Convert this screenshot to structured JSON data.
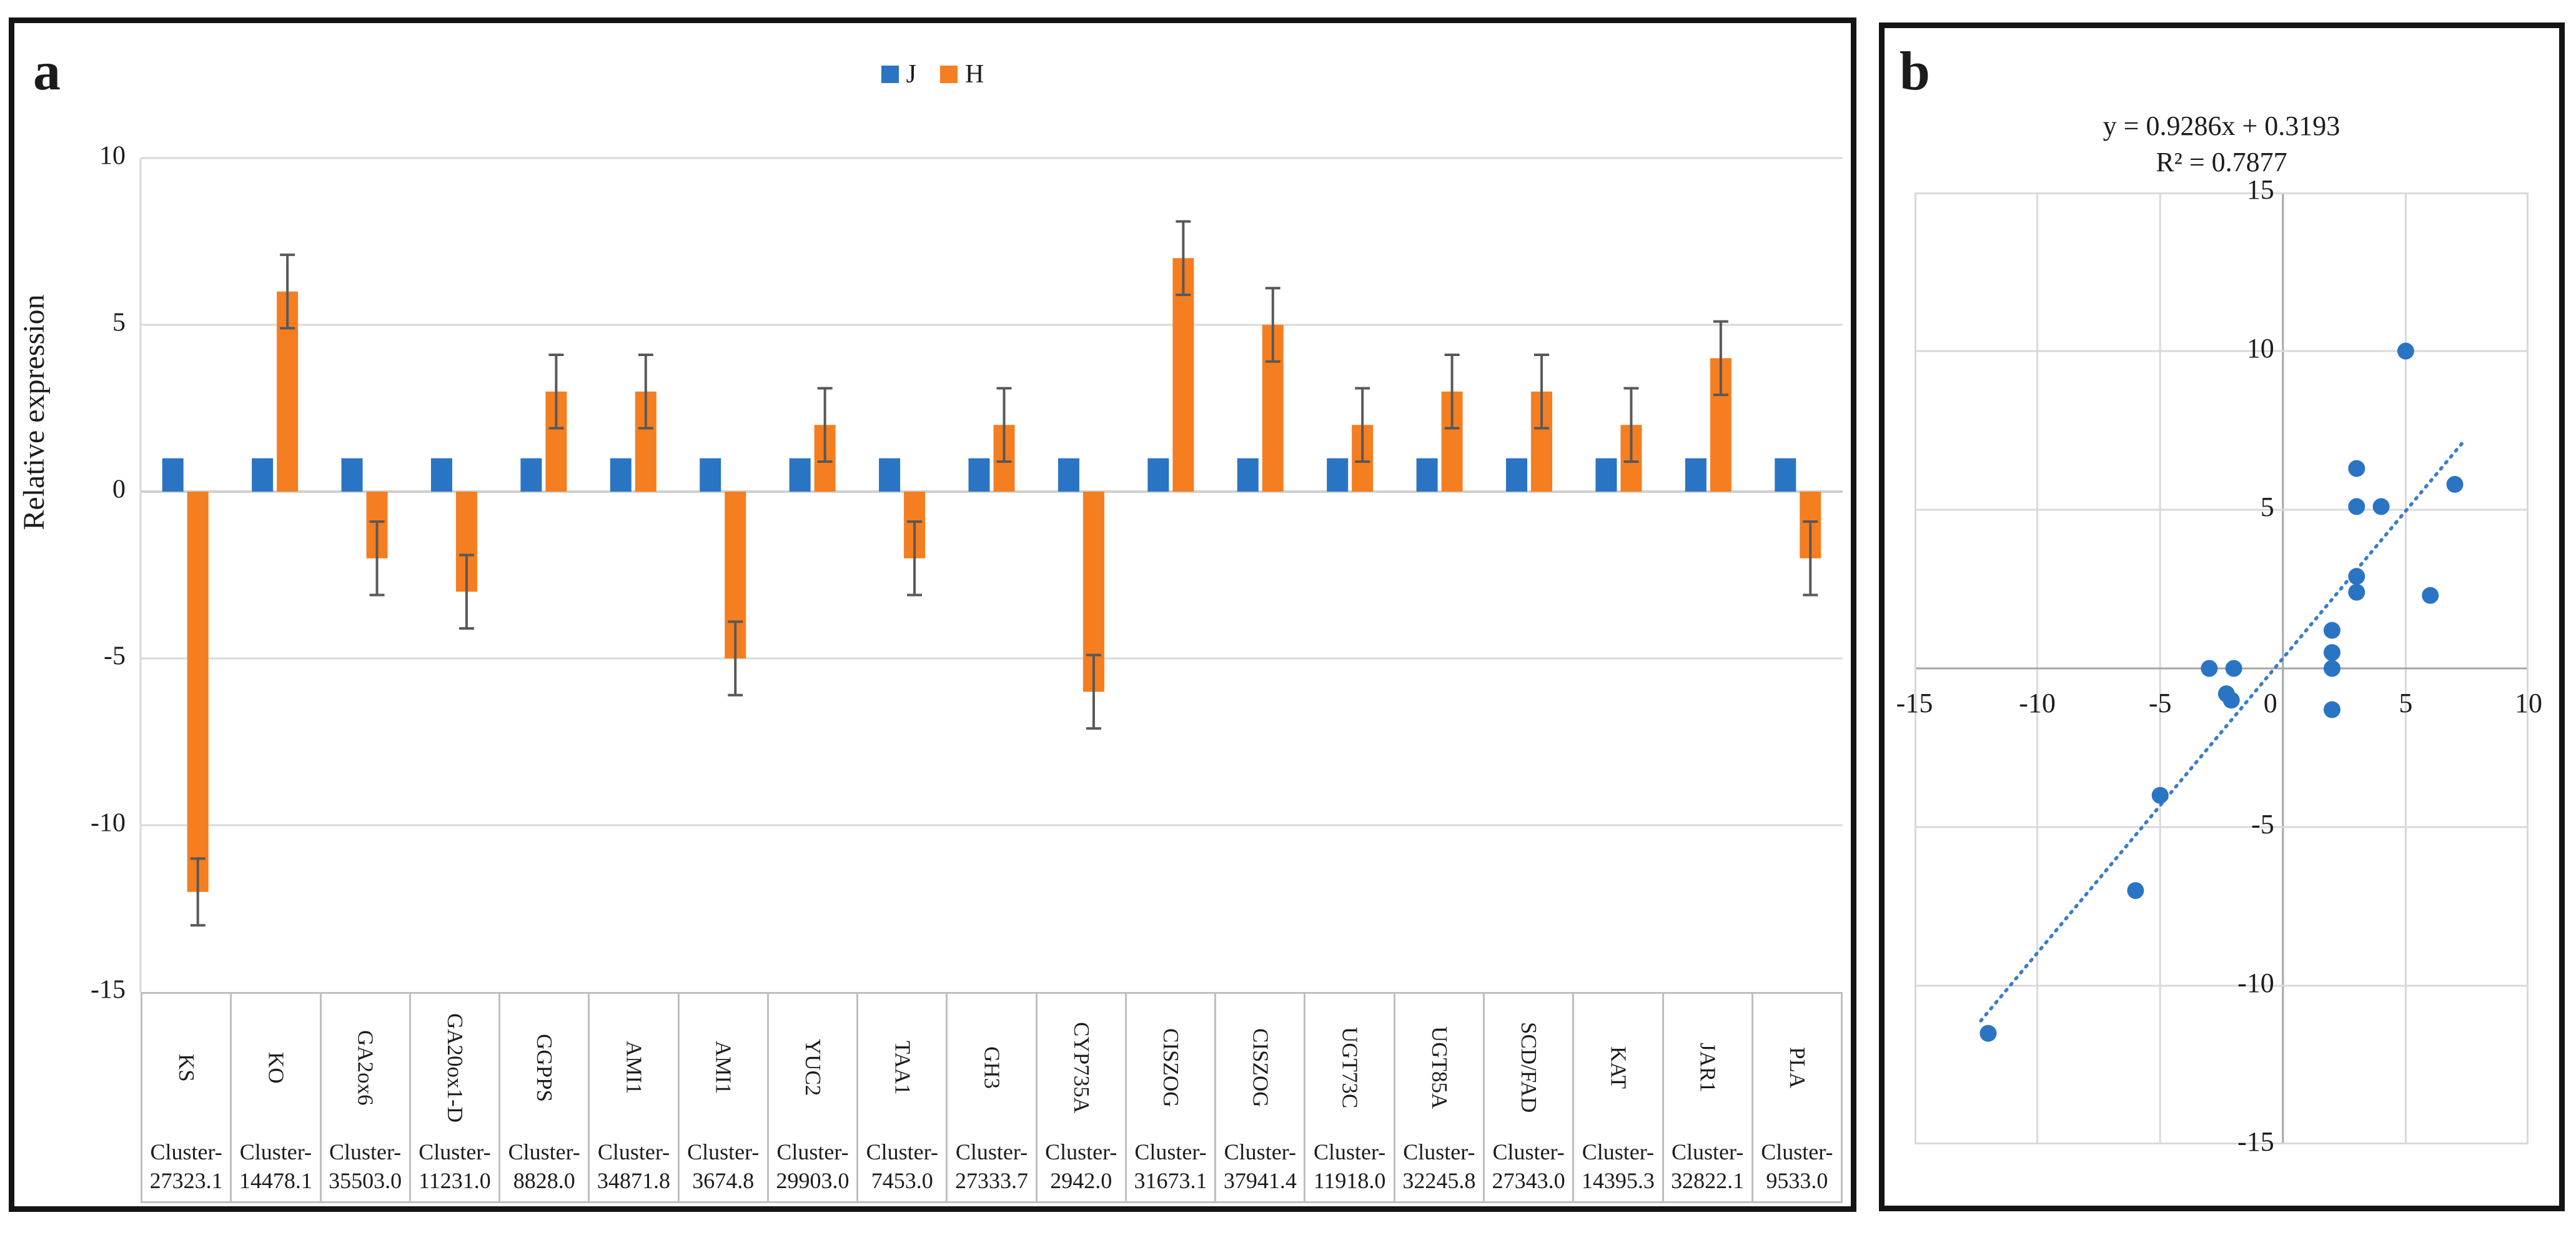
{
  "figure": {
    "panel_a_label": "a",
    "panel_b_label": "b"
  },
  "colors": {
    "series_blue": "#2A74C4",
    "series_orange": "#F57E20",
    "trendline_blue": "#3B7CC9",
    "error_bar": "#595959",
    "gridline": "#D9D9D9",
    "axis_dark": "#A6A6A6",
    "table_border": "#BFBFBF"
  },
  "chart_data": [
    {
      "id": "panel-a-bar-chart",
      "panel_label": "a",
      "type": "bar",
      "ylabel": "Relative expression",
      "ylim": [
        -15,
        10
      ],
      "yticks": [
        10,
        5,
        0,
        -5,
        -10,
        -15
      ],
      "grid": true,
      "legend_position": "top-center",
      "categories": [
        {
          "gene": "KS",
          "cluster": "Cluster-27323.1"
        },
        {
          "gene": "KO",
          "cluster": "Cluster-14478.1"
        },
        {
          "gene": "GA2ox6",
          "cluster": "Cluster-35503.0"
        },
        {
          "gene": "GA20ox1-D",
          "cluster": "Cluster-11231.0"
        },
        {
          "gene": "GGPPS",
          "cluster": "Cluster-8828.0"
        },
        {
          "gene": "AMI1",
          "cluster": "Cluster-34871.8"
        },
        {
          "gene": "AMI1",
          "cluster": "Cluster-3674.8"
        },
        {
          "gene": "YUC2",
          "cluster": "Cluster-29903.0"
        },
        {
          "gene": "TAA1",
          "cluster": "Cluster-7453.0"
        },
        {
          "gene": "GH3",
          "cluster": "Cluster-27333.7"
        },
        {
          "gene": "CYP735A",
          "cluster": "Cluster-2942.0"
        },
        {
          "gene": "CISZOG",
          "cluster": "Cluster-31673.1"
        },
        {
          "gene": "CISZOG",
          "cluster": "Cluster-37941.4"
        },
        {
          "gene": "UGT73C",
          "cluster": "Cluster-11918.0"
        },
        {
          "gene": "UGT85A",
          "cluster": "Cluster-32245.8"
        },
        {
          "gene": "SCD/FAD",
          "cluster": "Cluster-27343.0"
        },
        {
          "gene": "KAT",
          "cluster": "Cluster-14395.3"
        },
        {
          "gene": "JAR1",
          "cluster": "Cluster-32822.1"
        },
        {
          "gene": "PLA",
          "cluster": "Cluster-9533.0"
        }
      ],
      "series": [
        {
          "name": "J",
          "color": "#2A74C4",
          "values": [
            1,
            1,
            1,
            1,
            1,
            1,
            1,
            1,
            1,
            1,
            1,
            1,
            1,
            1,
            1,
            1,
            1,
            1,
            1
          ]
        },
        {
          "name": "H",
          "color": "#F57E20",
          "values": [
            -12,
            6,
            -2,
            -3,
            3,
            3,
            -5,
            2,
            -2,
            2,
            -6,
            7,
            5,
            2,
            3,
            3,
            2,
            4,
            -2
          ],
          "errors": [
            1,
            1.1,
            1.1,
            1.1,
            1.1,
            1.1,
            1.1,
            1.1,
            1.1,
            1.1,
            1.1,
            1.1,
            1.1,
            1.1,
            1.1,
            1.1,
            1.1,
            1.1,
            1.1
          ]
        }
      ]
    },
    {
      "id": "panel-b-scatter",
      "panel_label": "b",
      "type": "scatter",
      "title_lines": [
        "y = 0.9286x + 0.3193",
        "R² = 0.7877"
      ],
      "xlim": [
        -15,
        10
      ],
      "ylim": [
        -15,
        15
      ],
      "xticks": [
        -15,
        -10,
        -5,
        0,
        5,
        10
      ],
      "yticks": [
        15,
        10,
        5,
        0,
        -5,
        -10,
        -15
      ],
      "grid": true,
      "point_color": "#2A74C4",
      "points": [
        [
          -12,
          -11.5
        ],
        [
          -6,
          -7
        ],
        [
          -5,
          -4
        ],
        [
          -3,
          0
        ],
        [
          -2.3,
          -0.8
        ],
        [
          -2.1,
          -1.0
        ],
        [
          -2,
          0
        ],
        [
          2,
          1.2
        ],
        [
          2,
          0.5
        ],
        [
          2,
          0
        ],
        [
          2,
          -1.3
        ],
        [
          3,
          2.4
        ],
        [
          3,
          2.9
        ],
        [
          3,
          5.1
        ],
        [
          3,
          6.3
        ],
        [
          4,
          5.1
        ],
        [
          5,
          10
        ],
        [
          6,
          2.3
        ],
        [
          7,
          5.8
        ]
      ],
      "trendline": {
        "slope": 0.9286,
        "intercept": 0.3193,
        "x_range": [
          -12.3,
          7.35
        ],
        "style": "dotted",
        "color": "#3B7CC9"
      }
    }
  ]
}
